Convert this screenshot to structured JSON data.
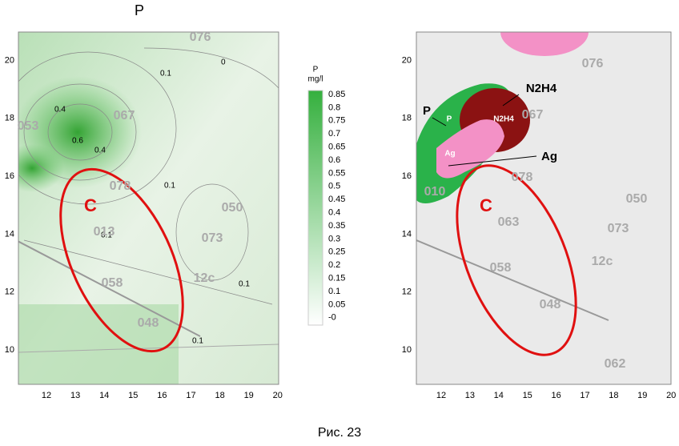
{
  "left": {
    "title": "P",
    "xticks": [
      "12",
      "13",
      "14",
      "15",
      "16",
      "17",
      "18",
      "19",
      "20"
    ],
    "yticks": [
      "10",
      "12",
      "14",
      "16",
      "18",
      "20"
    ],
    "zone": "C",
    "contours": [
      "0",
      "0.1",
      "0.4",
      "0.6",
      "0.4",
      "0.1",
      "0.1",
      "0.1",
      "0.1"
    ],
    "wells": [
      "076",
      "067",
      "053",
      "078",
      "050",
      "073",
      "058",
      "048",
      "12c",
      "013"
    ],
    "colorbar": {
      "title": "P",
      "unit": "mg/l",
      "labels": [
        "0.85",
        "0.8",
        "0.75",
        "0.7",
        "0.65",
        "0.6",
        "0.55",
        "0.5",
        "0.45",
        "0.4",
        "0.35",
        "0.3",
        "0.25",
        "0.2",
        "0.15",
        "0.1",
        "0.05",
        "-0"
      ]
    }
  },
  "right": {
    "xticks": [
      "12",
      "13",
      "14",
      "15",
      "16",
      "17",
      "18",
      "19",
      "20"
    ],
    "yticks": [
      "10",
      "12",
      "14",
      "16",
      "18",
      "20"
    ],
    "zone": "C",
    "callouts": [
      "P",
      "N2H4",
      "Ag"
    ],
    "blob_labels": [
      "P",
      "N2H4",
      "Ag"
    ],
    "wells": [
      "076",
      "067",
      "078",
      "010",
      "050",
      "063",
      "073",
      "12c",
      "058",
      "048",
      "062"
    ]
  },
  "caption": "Рис. 23"
}
